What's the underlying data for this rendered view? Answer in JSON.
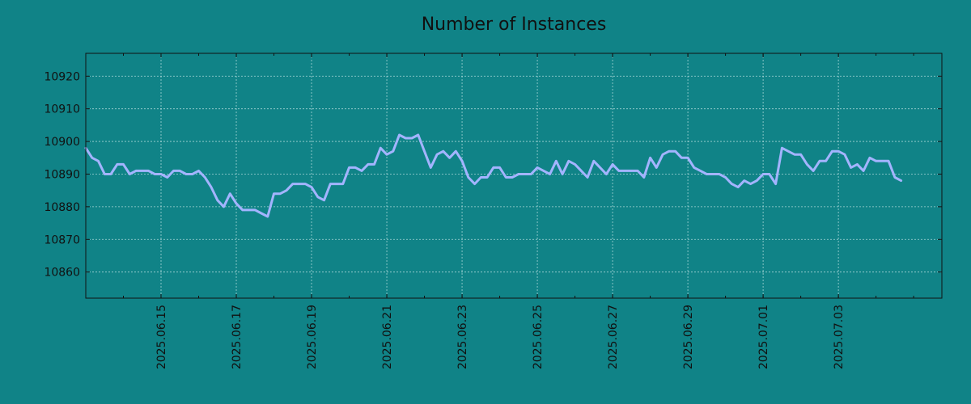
{
  "chart_data": {
    "type": "line",
    "title": "Number of Instances",
    "xlabel": "",
    "ylabel": "",
    "x_start": "2025-06-13",
    "x_end": "2025-07-05 18:00",
    "step_hours": 4,
    "xlim": [
      "2025-06-13",
      "2025-07-05 18:00"
    ],
    "ylim": [
      10852,
      10927
    ],
    "yticks": [
      10860,
      10870,
      10880,
      10890,
      10900,
      10910,
      10920
    ],
    "xticks": [
      "2025.06.15",
      "2025.06.17",
      "2025.06.19",
      "2025.06.21",
      "2025.06.23",
      "2025.06.25",
      "2025.06.27",
      "2025.06.29",
      "2025.07.01",
      "2025.07.03"
    ],
    "grid": true,
    "series": [
      {
        "name": "",
        "color": "#a3b4ff",
        "values": [
          10898,
          10895,
          10894,
          10890,
          10890,
          10893,
          10893,
          10890,
          10891,
          10891,
          10891,
          10890,
          10890,
          10889,
          10891,
          10891,
          10890,
          10890,
          10891,
          10889,
          10886,
          10882,
          10880,
          10884,
          10881,
          10879,
          10879,
          10879,
          10878,
          10877,
          10884,
          10884,
          10885,
          10887,
          10887,
          10887,
          10886,
          10883,
          10882,
          10887,
          10887,
          10887,
          10892,
          10892,
          10891,
          10893,
          10893,
          10898,
          10896,
          10897,
          10902,
          10901,
          10901,
          10902,
          10897,
          10892,
          10896,
          10897,
          10895,
          10897,
          10894,
          10889,
          10887,
          10889,
          10889,
          10892,
          10892,
          10889,
          10889,
          10890,
          10890,
          10890,
          10892,
          10891,
          10890,
          10894,
          10890,
          10894,
          10893,
          10891,
          10889,
          10894,
          10892,
          10890,
          10893,
          10891,
          10891,
          10891,
          10891,
          10889,
          10895,
          10892,
          10896,
          10897,
          10897,
          10895,
          10895,
          10892,
          10891,
          10890,
          10890,
          10890,
          10889,
          10887,
          10886,
          10888,
          10887,
          10888,
          10890,
          10890,
          10887,
          10898,
          10897,
          10896,
          10896,
          10893,
          10891,
          10894,
          10894,
          10897,
          10897,
          10896,
          10892,
          10893,
          10891,
          10895,
          10894,
          10894,
          10894,
          10889,
          10888
        ]
      }
    ]
  }
}
